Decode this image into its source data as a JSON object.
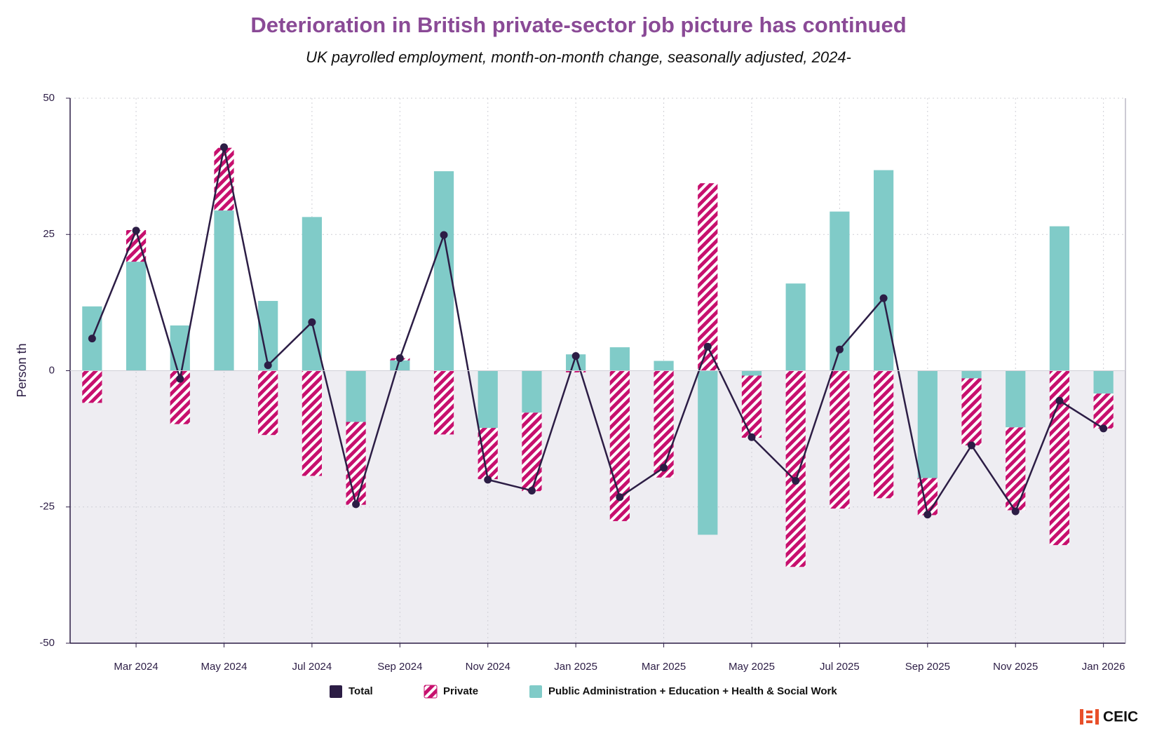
{
  "chart_data": {
    "type": "combo",
    "title": "Deterioration in British private-sector job picture has continued",
    "subtitle": "UK payrolled employment, month-on-month change, seasonally adjusted, 2024-",
    "y_label": "Person th",
    "categories": [
      null,
      "Mar 2024",
      null,
      "May 2024",
      null,
      "Jul 2024",
      null,
      "Sep 2024",
      null,
      "Nov 2024",
      null,
      "Jan 2025",
      null,
      "Mar 2025",
      null,
      "May 2025",
      null,
      "Jul 2025",
      null,
      "Sep 2025",
      null,
      "Nov 2025",
      null,
      "Jan 2026"
    ],
    "series": [
      {
        "name": "Total",
        "type": "line",
        "color": "#2c1d45",
        "values": [
          5.9,
          25.7,
          -1.5,
          41.0,
          1.0,
          8.9,
          -24.5,
          2.3,
          24.9,
          -20.0,
          -22.0,
          2.7,
          -23.2,
          -17.8,
          4.4,
          -12.2,
          -20.2,
          3.9,
          13.3,
          -26.4,
          -13.7,
          -25.8,
          -5.5,
          -10.6
        ]
      },
      {
        "name": "Private",
        "type": "bar",
        "color": "#c7106e",
        "hatch": true,
        "values": [
          -5.9,
          5.8,
          -9.8,
          11.5,
          -11.8,
          -19.3,
          -15.2,
          0.4,
          -11.7,
          -9.4,
          -14.4,
          -0.3,
          -27.6,
          -19.6,
          34.4,
          -11.4,
          -36.0,
          -25.3,
          -23.4,
          -6.8,
          -12.3,
          -15.2,
          -32.0,
          -6.4
        ]
      },
      {
        "name": "Public Administration + Education + Health & Social Work",
        "type": "bar",
        "color": "#80cbc8",
        "values": [
          11.8,
          20.0,
          8.3,
          29.4,
          12.8,
          28.2,
          -9.4,
          1.9,
          36.6,
          -10.5,
          -7.7,
          3.0,
          4.3,
          1.8,
          -30.1,
          -0.9,
          16.0,
          29.2,
          36.8,
          -19.7,
          -1.4,
          -10.4,
          26.5,
          -4.2
        ]
      }
    ],
    "stacked": true,
    "ylim": [
      -50,
      50
    ],
    "yticks": [
      -50,
      -25,
      0,
      25,
      50
    ],
    "grid": true,
    "legend": "bottom",
    "logo": "CEIC"
  }
}
